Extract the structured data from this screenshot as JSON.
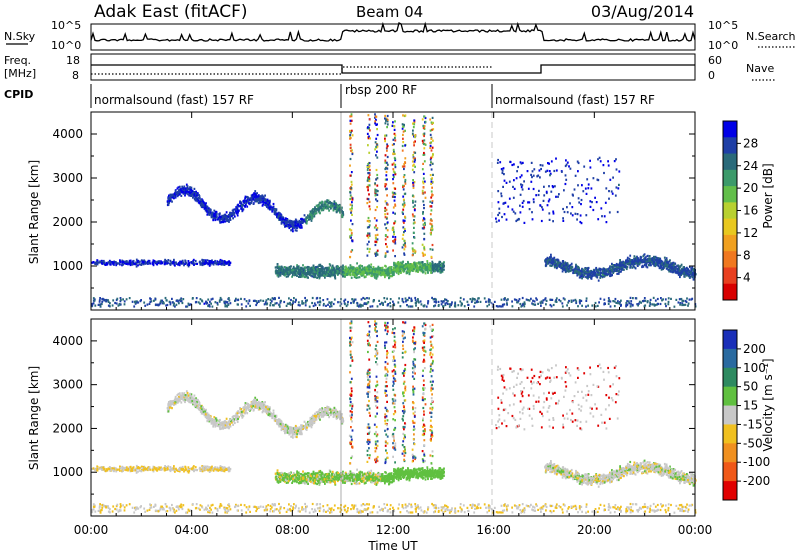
{
  "header": {
    "station": "Adak East (fitACF)",
    "beam": "Beam 04",
    "date": "03/Aug/2014"
  },
  "top_panels": {
    "nsky_label": "N.Sky",
    "nsearch_label": "N.Search",
    "nsky_ticks": [
      "10^5",
      "10^0"
    ],
    "nsearch_ticks": [
      "10^5",
      "10^0"
    ],
    "freq_label_1": "Freq.",
    "freq_label_2": "[MHz]",
    "freq_ticks": [
      "18",
      "8"
    ],
    "nave_label": "Nave",
    "nave_ticks": [
      "60",
      "0"
    ],
    "cpid_label": "CPID",
    "cpid_segments": [
      "normalsound (fast) 157 RF",
      "rbsp 200 RF",
      "normalsound (fast) 157 RF"
    ]
  },
  "chart_data": [
    {
      "type": "heatmap",
      "ylabel": "Slant Range [km]",
      "y_ticks": [
        "4000",
        "3000",
        "2000",
        "1000"
      ],
      "ylim": [
        0,
        4500
      ],
      "xlabel": "Time UT",
      "x_ticks": [
        "00:00",
        "04:00",
        "08:00",
        "12:00",
        "16:00",
        "20:00",
        "00:00"
      ],
      "xlim_hours": [
        0,
        24
      ],
      "colorbar": {
        "label": "Power [dB]",
        "ticks": [
          "28",
          "24",
          "20",
          "16",
          "12",
          "8",
          "4"
        ],
        "colors": [
          "#0000e6",
          "#1f3fa6",
          "#2a6a7a",
          "#3c9a6a",
          "#62be4a",
          "#b8d030",
          "#e8c820",
          "#f0a020",
          "#f07820",
          "#e84020",
          "#d80000"
        ]
      }
    },
    {
      "type": "heatmap",
      "ylabel": "Slant Range [km]",
      "y_ticks": [
        "4000",
        "3000",
        "2000",
        "1000"
      ],
      "ylim": [
        0,
        4500
      ],
      "xlabel": "Time UT",
      "x_ticks": [
        "00:00",
        "04:00",
        "08:00",
        "12:00",
        "16:00",
        "20:00",
        "00:00"
      ],
      "xlim_hours": [
        0,
        24
      ],
      "colorbar": {
        "label": "Velocity [m s⁻¹]",
        "ticks": [
          "200",
          "100",
          "50",
          "15",
          "-15",
          "-50",
          "-100",
          "-200"
        ],
        "colors": [
          "#1a2fb8",
          "#2a6aa0",
          "#2e8a60",
          "#60c040",
          "#c8c8c8",
          "#f0c020",
          "#f09020",
          "#f05818",
          "#e00000"
        ]
      }
    }
  ],
  "x_axis": {
    "ticks": [
      "00:00",
      "04:00",
      "08:00",
      "12:00",
      "16:00",
      "20:00",
      "00:00"
    ],
    "label": "Time UT"
  }
}
